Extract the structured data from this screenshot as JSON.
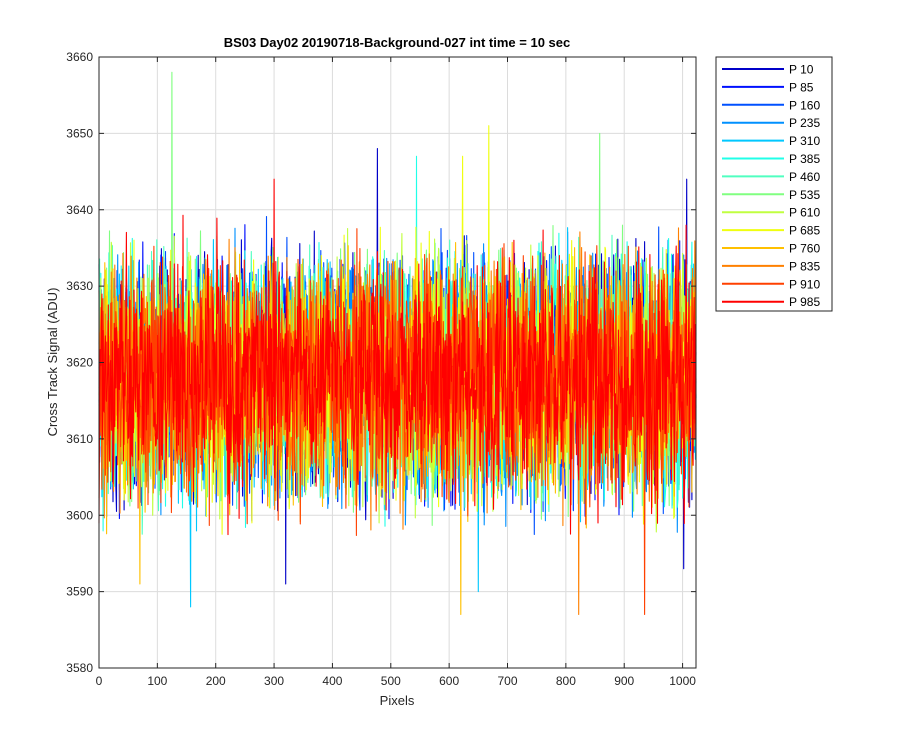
{
  "chart_data": {
    "type": "line",
    "title": "BS03 Day02 20190718-Background-027 int time = 10 sec",
    "xlabel": "Pixels",
    "ylabel": "Cross Track Signal (ADU)",
    "xlim": [
      0,
      1023
    ],
    "ylim": [
      3580,
      3660
    ],
    "xticks": [
      0,
      100,
      200,
      300,
      400,
      500,
      600,
      700,
      800,
      900,
      1000
    ],
    "yticks": [
      3580,
      3590,
      3600,
      3610,
      3620,
      3630,
      3640,
      3650,
      3660
    ],
    "grid": true,
    "legend_position": "outside-top-right",
    "signal_mean": 3618,
    "signal_amplitude": 11,
    "series": [
      {
        "name": "P 10",
        "color": "#0000c8"
      },
      {
        "name": "P 85",
        "color": "#0010ff"
      },
      {
        "name": "P 160",
        "color": "#0050ff"
      },
      {
        "name": "P 235",
        "color": "#0090ff"
      },
      {
        "name": "P 310",
        "color": "#00c8ff"
      },
      {
        "name": "P 385",
        "color": "#20ffe8"
      },
      {
        "name": "P 460",
        "color": "#50ffc0"
      },
      {
        "name": "P 535",
        "color": "#80ff80"
      },
      {
        "name": "P 610",
        "color": "#c0ff40"
      },
      {
        "name": "P 685",
        "color": "#f0ff10"
      },
      {
        "name": "P 760",
        "color": "#ffc000"
      },
      {
        "name": "P 835",
        "color": "#ff8000"
      },
      {
        "name": "P 910",
        "color": "#ff4000"
      },
      {
        "name": "P 985",
        "color": "#ff0000"
      }
    ],
    "peaks": [
      {
        "series": "P 535",
        "x": 125,
        "y": 3658
      },
      {
        "series": "P 685",
        "x": 668,
        "y": 3651
      },
      {
        "series": "P 535",
        "x": 858,
        "y": 3650
      },
      {
        "series": "P 10",
        "x": 477,
        "y": 3648
      },
      {
        "series": "P 385",
        "x": 544,
        "y": 3647
      },
      {
        "series": "P 685",
        "x": 623,
        "y": 3647
      },
      {
        "series": "P 10",
        "x": 1007,
        "y": 3644
      },
      {
        "series": "P 985",
        "x": 300,
        "y": 3644
      },
      {
        "series": "P 310",
        "x": 157,
        "y": 3588
      },
      {
        "series": "P 760",
        "x": 620,
        "y": 3587
      },
      {
        "series": "P 835",
        "x": 822,
        "y": 3587
      },
      {
        "series": "P 910",
        "x": 935,
        "y": 3587
      },
      {
        "series": "P 10",
        "x": 320,
        "y": 3591
      },
      {
        "series": "P 760",
        "x": 70,
        "y": 3591
      },
      {
        "series": "P 310",
        "x": 650,
        "y": 3590
      },
      {
        "series": "P 10",
        "x": 1002,
        "y": 3593
      }
    ]
  }
}
